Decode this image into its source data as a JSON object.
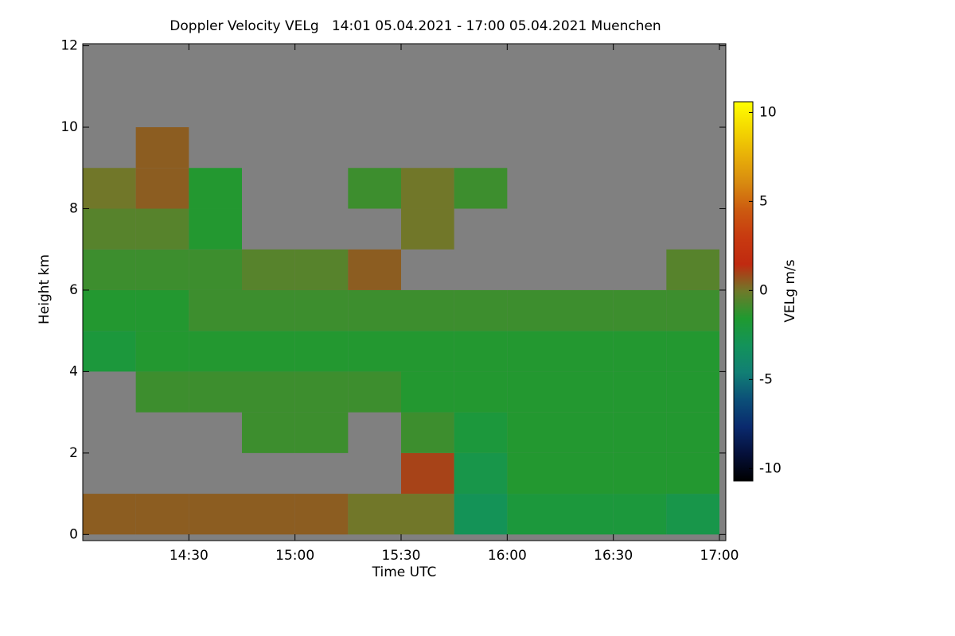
{
  "chart_data": {
    "type": "heatmap",
    "title": "Doppler Velocity VELg   14:01 05.04.2021 - 17:00 05.04.2021 Muenchen",
    "xlabel": "Time UTC",
    "ylabel": "Height km",
    "colorbar_label": "VELg m/s",
    "background_color": "#808080",
    "xlim": [
      14.0,
      17.03
    ],
    "ylim": [
      -0.15,
      12.05
    ],
    "xticks": [
      {
        "value": 14.5,
        "label": "14:30"
      },
      {
        "value": 15.0,
        "label": "15:00"
      },
      {
        "value": 15.5,
        "label": "15:30"
      },
      {
        "value": 16.0,
        "label": "16:00"
      },
      {
        "value": 16.5,
        "label": "16:30"
      },
      {
        "value": 17.0,
        "label": "17:00"
      }
    ],
    "yticks": [
      0,
      2,
      4,
      6,
      8,
      10,
      12
    ],
    "clim": [
      -10.7,
      10.6
    ],
    "cticks": [
      -10,
      -5,
      0,
      5,
      10
    ],
    "colormap": [
      "#000000",
      "#05103a",
      "#0a2a6e",
      "#0b4f78",
      "#117f74",
      "#13935a",
      "#1f9a30",
      "#6e7a2a",
      "#c02a10",
      "#c83a10",
      "#cc5a10",
      "#d88a10",
      "#e8b008",
      "#f4d800",
      "#ffff00"
    ],
    "x_bins": [
      14.0,
      14.25,
      14.5,
      14.75,
      15.0,
      15.25,
      15.5,
      15.75,
      16.0,
      16.25,
      16.5,
      16.75,
      17.0
    ],
    "y_bins": [
      0,
      1,
      2,
      3,
      4,
      5,
      6,
      7,
      8,
      9,
      10
    ],
    "z": [
      [
        0.5,
        0.5,
        0.5,
        0.5,
        0.5,
        0,
        0,
        -3,
        -2,
        -2,
        -2,
        -2.5
      ],
      [
        null,
        null,
        null,
        null,
        null,
        null,
        1,
        -2.5,
        -1.5,
        -1.5,
        -1.5,
        -1.5
      ],
      [
        null,
        null,
        null,
        -1,
        -1,
        null,
        -1,
        -2,
        -1.5,
        -1.5,
        -1.5,
        -1.5
      ],
      [
        null,
        -1,
        -1,
        -1,
        -1,
        -1,
        -1.5,
        -1.5,
        -1.5,
        -1.5,
        -1.5,
        -1.5
      ],
      [
        -2,
        -1.5,
        -1.5,
        -1.5,
        -1.5,
        -1.5,
        -1.5,
        -1.5,
        -1.5,
        -1.5,
        -1.5,
        -1.5
      ],
      [
        -1.5,
        -1.5,
        -1,
        -1,
        -1,
        -1,
        -1,
        -1,
        -1,
        -1,
        -1,
        -1
      ],
      [
        -1,
        -1,
        -1,
        -0.5,
        -0.5,
        0.5,
        null,
        null,
        null,
        null,
        null,
        -0.5
      ],
      [
        -0.5,
        -0.5,
        -1.5,
        null,
        null,
        null,
        0,
        null,
        null,
        null,
        null,
        null
      ],
      [
        0,
        0.5,
        -1.5,
        null,
        null,
        -1,
        0,
        -1,
        null,
        null,
        null,
        null
      ],
      [
        null,
        0.5,
        null,
        null,
        null,
        null,
        null,
        null,
        null,
        null,
        null,
        null
      ]
    ]
  }
}
